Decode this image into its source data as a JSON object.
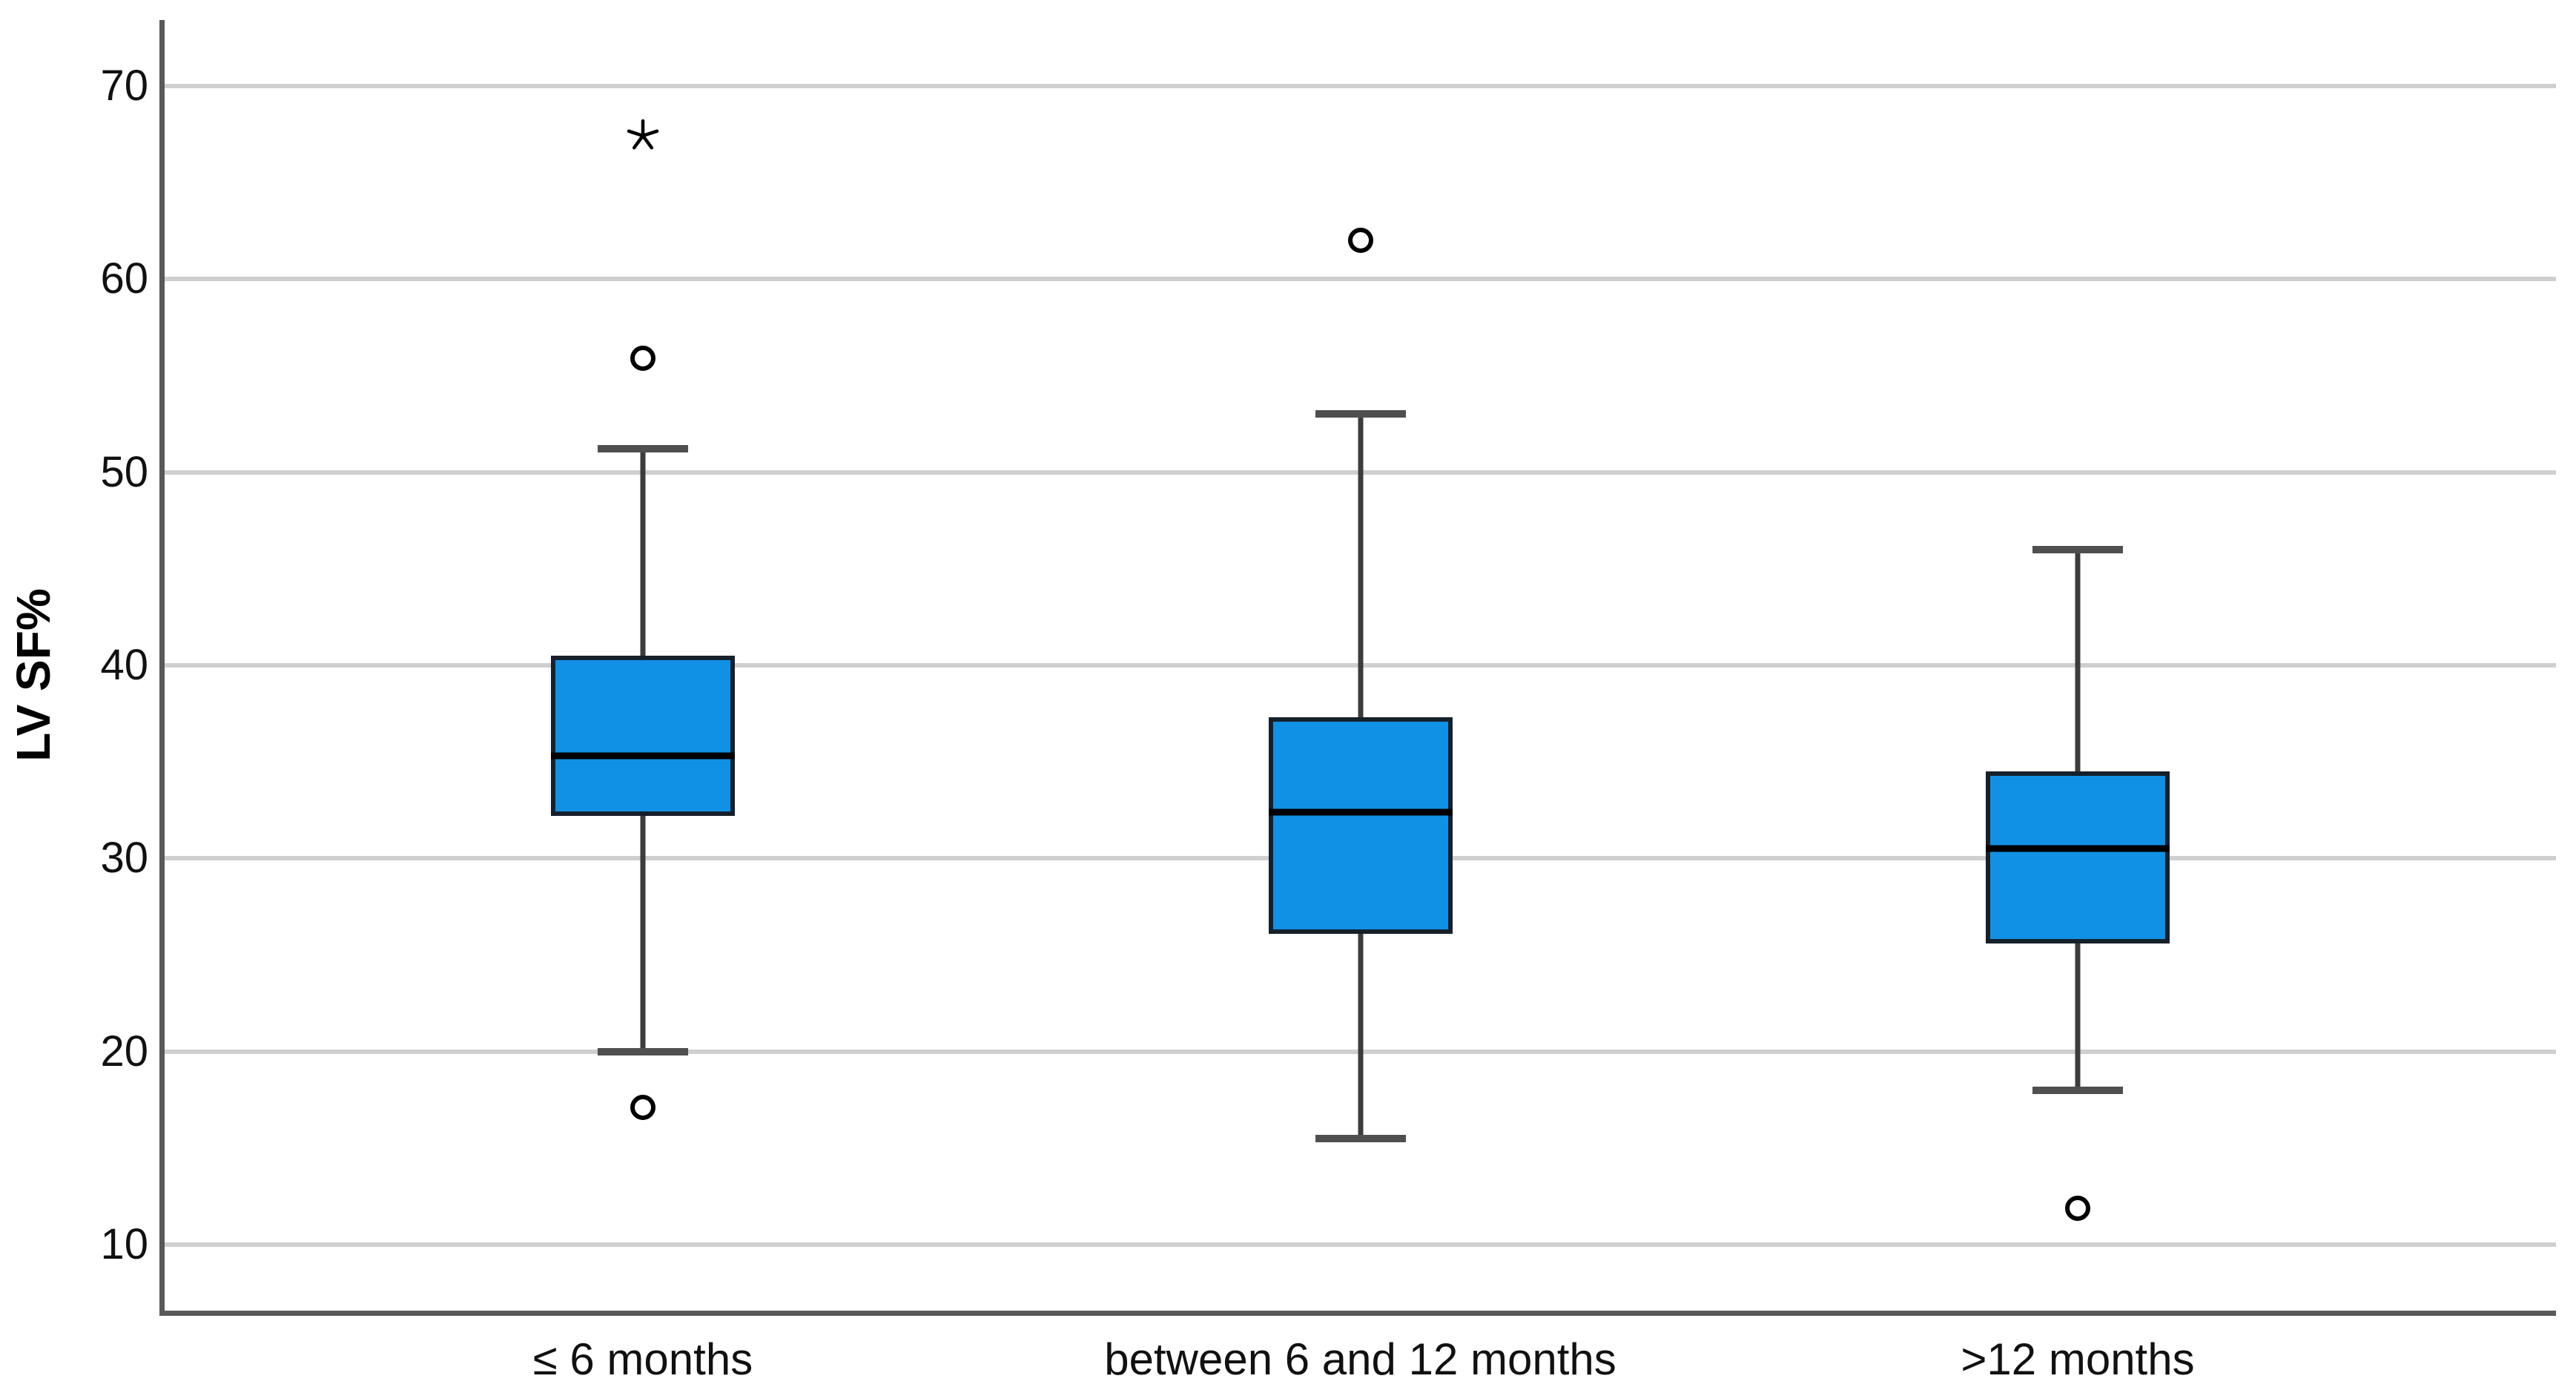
{
  "chart_data": {
    "type": "box",
    "title": "",
    "xlabel": "",
    "ylabel": "LV SF%",
    "ylim": [
      6.6,
      73.4
    ],
    "yticks": [
      10,
      20,
      30,
      40,
      50,
      60,
      70
    ],
    "grid": "horizontal",
    "legend": "none",
    "outlier_marker": "circle",
    "extreme_marker": "asterisk-star",
    "categories": [
      "≤ 6 months",
      "between 6 and 12 months",
      ">12 months"
    ],
    "series": [
      {
        "category": "≤ 6 months",
        "whisker_low": 20.0,
        "q1": 32.2,
        "median": 35.3,
        "q3": 40.5,
        "whisker_high": 51.2,
        "outliers": [
          55.9,
          17.1
        ],
        "extremes": [
          67.4
        ]
      },
      {
        "category": "between 6 and 12 months",
        "whisker_low": 15.5,
        "q1": 26.1,
        "median": 32.4,
        "q3": 37.3,
        "whisker_high": 53.0,
        "outliers": [
          62.0
        ],
        "extremes": []
      },
      {
        "category": ">12 months",
        "whisker_low": 18.0,
        "q1": 25.6,
        "median": 30.5,
        "q3": 34.5,
        "whisker_high": 46.0,
        "outliers": [
          11.9
        ],
        "extremes": []
      }
    ],
    "colors": {
      "box_fill": "#1191E5",
      "box_border": "#16202B",
      "median": "#000000",
      "whisker": "#3C3C3C",
      "cap": "#4F4F4F",
      "grid": "#CFCFCF",
      "axis": "#58595B",
      "outlier_stroke": "#000000",
      "extreme_stroke": "#000000",
      "tick_text": "#111111"
    }
  }
}
